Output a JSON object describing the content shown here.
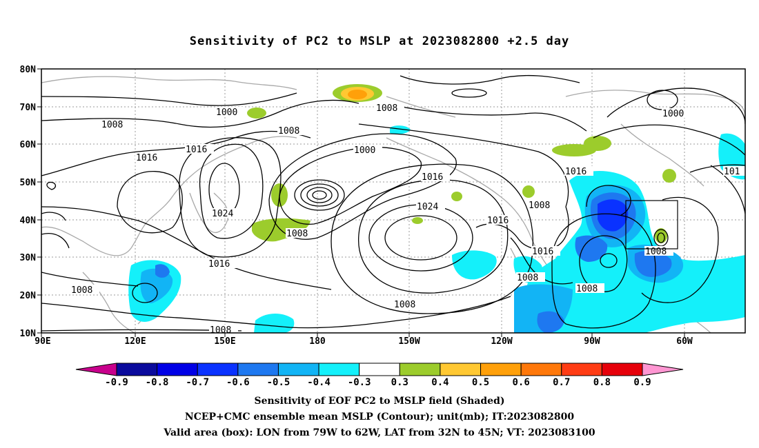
{
  "title": "Sensitivity of PC2 to MSLP at 2023082800 +2.5 day",
  "axes": {
    "lat_ticks": [
      "80N",
      "70N",
      "60N",
      "50N",
      "40N",
      "30N",
      "20N",
      "10N"
    ],
    "lon_ticks": [
      "90E",
      "120E",
      "150E",
      "180",
      "150W",
      "120W",
      "90W",
      "60W"
    ]
  },
  "contour_labels": [
    "1000",
    "1008",
    "1008",
    "1000",
    "1008",
    "1016",
    "1016",
    "1000",
    "1016",
    "1016",
    "1024",
    "1024",
    "1008",
    "1008",
    "1016",
    "1008",
    "1016",
    "1008",
    "1008",
    "1008",
    "1016",
    "1008",
    "1008",
    "101"
  ],
  "colorbar": {
    "labels": [
      "-0.9",
      "-0.8",
      "-0.7",
      "-0.6",
      "-0.5",
      "-0.4",
      "-0.3",
      "0.3",
      "0.4",
      "0.5",
      "0.6",
      "0.7",
      "0.8",
      "0.9"
    ],
    "colors": [
      "#0a0a9c",
      "#0000e6",
      "#0a32ff",
      "#1e78f0",
      "#12b4f5",
      "#14f0fa",
      "#ffffff",
      "#9ccc2c",
      "#ffc832",
      "#ffa00a",
      "#ff780a",
      "#ff3c14",
      "#e6000a"
    ],
    "low_arrow_color": "#c8008c",
    "high_arrow_color": "#ff96d2"
  },
  "captions": {
    "line1": "Sensitivity of EOF PC2 to MSLP field (Shaded)",
    "line2": "NCEP+CMC ensemble mean MSLP (Contour); unit(mb); IT:2023082800",
    "line3": "Valid area (box): LON from 79W to 62W, LAT from 32N to 45N; VT: 2023083100"
  }
}
